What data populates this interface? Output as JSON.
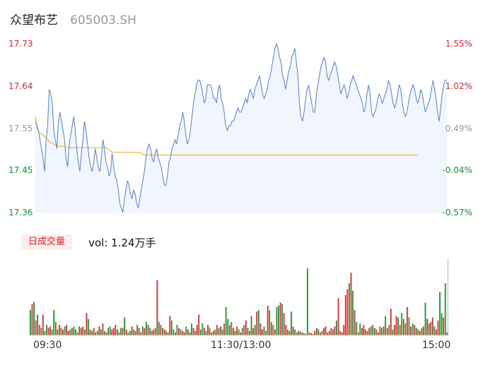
{
  "header": {
    "name": "众望布艺",
    "code": "605003.SH"
  },
  "colors": {
    "up": "#e8262f",
    "down": "#139a2f",
    "price_line": "#4f7fe8",
    "avg_line": "#f4b53f",
    "fill": "#f1f5fd"
  },
  "volume_panel": {
    "tab_label": "日成交量",
    "vol_label": "vol: 1.24万手"
  },
  "chart_data": [
    {
      "type": "line",
      "x_ticks": [
        "09:30",
        "11:30/13:00",
        "15:00"
      ],
      "y_ticks_left": [
        "17.73",
        "17.64",
        "17.55",
        "17.45",
        "17.36"
      ],
      "y_ticks_right": [
        "1.55%",
        "1.02%",
        "0.49%",
        "-0.04%",
        "-0.57%"
      ],
      "ylim": [
        17.36,
        17.73
      ],
      "series": [
        {
          "values": [
            17.56,
            17.55,
            17.54,
            17.52,
            17.5,
            17.48,
            17.45,
            17.52,
            17.55,
            17.63,
            17.62,
            17.6,
            17.54,
            17.52,
            17.5,
            17.56,
            17.58,
            17.56,
            17.54,
            17.52,
            17.48,
            17.46,
            17.51,
            17.53,
            17.55,
            17.57,
            17.54,
            17.5,
            17.47,
            17.45,
            17.49,
            17.52,
            17.56,
            17.54,
            17.51,
            17.48,
            17.46,
            17.45,
            17.47,
            17.5,
            17.48,
            17.46,
            17.45,
            17.48,
            17.52,
            17.5,
            17.47,
            17.46,
            17.44,
            17.45,
            17.49,
            17.46,
            17.44,
            17.43,
            17.41,
            17.38,
            17.37,
            17.36,
            17.39,
            17.41,
            17.43,
            17.42,
            17.4,
            17.39,
            17.41,
            17.4,
            17.38,
            17.37,
            17.39,
            17.41,
            17.43,
            17.45,
            17.48,
            17.5,
            17.51,
            17.5,
            17.48,
            17.47,
            17.49,
            17.5,
            17.48,
            17.47,
            17.46,
            17.44,
            17.42,
            17.42,
            17.44,
            17.47,
            17.48,
            17.5,
            17.51,
            17.52,
            17.51,
            17.53,
            17.55,
            17.56,
            17.58,
            17.56,
            17.53,
            17.51,
            17.52,
            17.54,
            17.57,
            17.6,
            17.62,
            17.64,
            17.65,
            17.65,
            17.64,
            17.62,
            17.6,
            17.61,
            17.64,
            17.64,
            17.64,
            17.63,
            17.61,
            17.61,
            17.6,
            17.63,
            17.64,
            17.61,
            17.6,
            17.58,
            17.55,
            17.54,
            17.55,
            17.55,
            17.56,
            17.56,
            17.57,
            17.58,
            17.59,
            17.58,
            17.58,
            17.59,
            17.6,
            17.61,
            17.6,
            17.62,
            17.63,
            17.62,
            17.61,
            17.63,
            17.64,
            17.65,
            17.66,
            17.64,
            17.62,
            17.61,
            17.62,
            17.63,
            17.65,
            17.66,
            17.68,
            17.7,
            17.72,
            17.73,
            17.72,
            17.7,
            17.69,
            17.66,
            17.65,
            17.63,
            17.65,
            17.67,
            17.68,
            17.7,
            17.71,
            17.72,
            17.69,
            17.66,
            17.6,
            17.57,
            17.56,
            17.58,
            17.61,
            17.63,
            17.64,
            17.62,
            17.6,
            17.58,
            17.58,
            17.62,
            17.64,
            17.66,
            17.68,
            17.69,
            17.7,
            17.69,
            17.66,
            17.65,
            17.66,
            17.67,
            17.68,
            17.69,
            17.68,
            17.66,
            17.64,
            17.62,
            17.63,
            17.64,
            17.63,
            17.61,
            17.62,
            17.64,
            17.65,
            17.66,
            17.65,
            17.64,
            17.63,
            17.62,
            17.61,
            17.6,
            17.58,
            17.59,
            17.62,
            17.64,
            17.62,
            17.58,
            17.57,
            17.58,
            17.59,
            17.61,
            17.62,
            17.61,
            17.6,
            17.61,
            17.62,
            17.63,
            17.65,
            17.64,
            17.62,
            17.6,
            17.59,
            17.6,
            17.62,
            17.64,
            17.63,
            17.6,
            17.58,
            17.57,
            17.58,
            17.6,
            17.62,
            17.63,
            17.64,
            17.63,
            17.61,
            17.6,
            17.61,
            17.63,
            17.62,
            17.6,
            17.58,
            17.59,
            17.6,
            17.61,
            17.63,
            17.65,
            17.63,
            17.61,
            17.58,
            17.56,
            17.59,
            17.62,
            17.64,
            17.65,
            17.65
          ]
        },
        {
          "values": [
            17.57,
            17.545,
            17.538,
            17.535,
            17.532,
            17.53,
            17.527,
            17.525,
            17.52,
            17.516,
            17.514,
            17.512,
            17.51,
            17.508,
            17.507,
            17.506,
            17.505,
            17.505,
            17.505,
            17.504,
            17.503,
            17.502,
            17.502,
            17.502,
            17.502,
            17.502,
            17.502,
            17.502,
            17.502,
            17.502,
            17.502,
            17.502,
            17.502,
            17.502,
            17.502,
            17.502,
            17.502,
            17.502,
            17.502,
            17.502,
            17.502,
            17.502,
            17.502,
            17.502,
            17.502,
            17.502,
            17.502,
            17.5,
            17.497,
            17.495,
            17.493,
            17.492,
            17.492,
            17.492,
            17.492,
            17.492,
            17.492,
            17.492,
            17.492,
            17.492,
            17.492,
            17.492,
            17.492,
            17.492,
            17.492,
            17.492,
            17.492,
            17.492,
            17.492,
            17.49,
            17.488,
            17.486,
            17.486,
            17.486,
            17.486,
            17.486,
            17.486,
            17.486,
            17.486,
            17.486,
            17.486,
            17.486,
            17.486,
            17.486,
            17.486,
            17.486,
            17.486,
            17.486,
            17.486,
            17.486,
            17.486,
            17.486,
            17.486,
            17.486,
            17.486,
            17.486,
            17.486,
            17.486,
            17.486,
            17.486,
            17.486,
            17.486,
            17.486,
            17.486,
            17.486,
            17.486,
            17.486,
            17.486,
            17.486,
            17.486,
            17.486,
            17.486,
            17.486,
            17.486,
            17.486,
            17.486,
            17.486,
            17.486,
            17.486,
            17.486,
            17.486,
            17.486,
            17.486,
            17.486,
            17.486,
            17.486,
            17.486,
            17.486,
            17.486,
            17.486,
            17.486,
            17.486,
            17.486,
            17.486,
            17.486,
            17.486,
            17.486,
            17.486,
            17.486,
            17.486,
            17.486,
            17.486,
            17.486,
            17.486,
            17.486,
            17.486,
            17.486,
            17.486,
            17.486,
            17.486,
            17.486,
            17.486,
            17.486,
            17.486,
            17.486,
            17.486,
            17.486,
            17.486,
            17.486,
            17.486,
            17.486,
            17.486,
            17.486,
            17.486,
            17.486,
            17.486,
            17.486,
            17.486,
            17.486,
            17.486,
            17.486,
            17.486,
            17.486,
            17.486,
            17.486,
            17.486,
            17.486,
            17.486,
            17.486,
            17.486,
            17.486,
            17.486,
            17.486,
            17.486,
            17.486,
            17.486,
            17.486,
            17.486,
            17.486,
            17.486,
            17.486,
            17.486,
            17.486,
            17.486,
            17.486,
            17.486,
            17.486,
            17.486,
            17.486,
            17.486,
            17.486,
            17.486,
            17.486,
            17.486,
            17.486,
            17.486,
            17.486,
            17.486,
            17.486,
            17.486,
            17.486,
            17.486,
            17.486,
            17.486,
            17.486,
            17.486,
            17.486,
            17.486,
            17.486,
            17.486,
            17.486,
            17.486,
            17.486,
            17.486,
            17.486,
            17.486,
            17.486,
            17.486,
            17.486,
            17.486,
            17.486,
            17.486,
            17.486,
            17.486,
            17.486,
            17.486,
            17.486,
            17.486,
            17.486,
            17.486,
            17.486,
            17.486,
            17.486,
            17.486,
            17.486,
            17.486,
            17.486,
            17.486,
            17.486,
            17.486
          ]
        }
      ]
    },
    {
      "type": "bar",
      "x_ticks": [
        "09:30",
        "11:30/13:00",
        "15:00"
      ],
      "values": [
        34,
        42,
        45,
        20,
        28,
        14,
        10,
        28,
        6,
        14,
        10,
        12,
        8,
        34,
        18,
        8,
        14,
        10,
        8,
        12,
        14,
        6,
        8,
        10,
        12,
        8,
        4,
        12,
        10,
        12,
        8,
        30,
        22,
        8,
        6,
        10,
        4,
        6,
        12,
        8,
        16,
        6,
        4,
        10,
        12,
        8,
        10,
        14,
        8,
        4,
        10,
        10,
        24,
        8,
        4,
        6,
        12,
        8,
        6,
        14,
        10,
        4,
        12,
        10,
        18,
        14,
        10,
        6,
        8,
        10,
        74,
        18,
        14,
        10,
        8,
        6,
        4,
        26,
        20,
        8,
        4,
        14,
        10,
        8,
        6,
        4,
        12,
        8,
        4,
        16,
        10,
        6,
        14,
        28,
        8,
        16,
        10,
        6,
        14,
        10,
        4,
        6,
        8,
        14,
        10,
        12,
        8,
        16,
        38,
        22,
        14,
        18,
        10,
        6,
        12,
        8,
        4,
        10,
        14,
        20,
        10,
        6,
        26,
        10,
        14,
        32,
        34,
        16,
        8,
        12,
        6,
        40,
        34,
        18,
        14,
        8,
        38,
        40,
        44,
        42,
        30,
        14,
        8,
        6,
        32,
        12,
        8,
        4,
        6,
        5,
        4,
        3,
        2,
        90,
        4,
        3,
        2,
        6,
        10,
        8,
        4,
        6,
        10,
        12,
        4,
        6,
        10,
        8,
        12,
        20,
        50,
        6,
        4,
        14,
        54,
        62,
        70,
        84,
        60,
        34,
        18,
        4,
        16,
        10,
        14,
        8,
        6,
        10,
        12,
        14,
        10,
        8,
        4,
        12,
        10,
        12,
        26,
        10,
        14,
        36,
        8,
        14,
        26,
        24,
        14,
        30,
        22,
        16,
        38,
        24,
        12,
        16,
        14,
        10,
        8,
        6,
        10,
        12,
        44,
        22,
        16,
        18,
        24,
        12,
        8,
        20,
        58,
        30,
        24,
        70,
        4
      ],
      "colors_seq": [
        "down",
        "up",
        "down",
        "up",
        "down",
        "up",
        "down",
        "up",
        "down",
        "down",
        "up",
        "up",
        "down",
        "down",
        "up",
        "down",
        "up",
        "down",
        "up",
        "down",
        "up",
        "up",
        "down",
        "up",
        "down",
        "down",
        "up",
        "down",
        "up",
        "up",
        "down",
        "up",
        "down",
        "up",
        "down",
        "up",
        "up",
        "down",
        "up",
        "down",
        "up",
        "down",
        "up",
        "down",
        "down",
        "up",
        "up",
        "up",
        "down",
        "up",
        "down",
        "up",
        "down",
        "up",
        "down",
        "down",
        "up",
        "down",
        "up",
        "down",
        "up",
        "up",
        "down",
        "up",
        "down",
        "up",
        "down",
        "up",
        "up",
        "down",
        "up",
        "down",
        "up",
        "down",
        "up",
        "down",
        "up",
        "up",
        "down",
        "down",
        "up",
        "down",
        "up",
        "down",
        "up",
        "up",
        "down",
        "up",
        "down",
        "down",
        "up",
        "down",
        "up",
        "up",
        "down",
        "down",
        "up",
        "down",
        "up",
        "down",
        "up",
        "up",
        "down",
        "up",
        "down",
        "up",
        "down",
        "up",
        "down",
        "down",
        "up",
        "down",
        "up",
        "down",
        "up",
        "down",
        "up",
        "down",
        "up",
        "up",
        "down",
        "up",
        "down",
        "up",
        "down",
        "up",
        "down",
        "up",
        "up",
        "down",
        "down",
        "up",
        "down",
        "up",
        "down",
        "up",
        "down",
        "down",
        "up",
        "down",
        "up",
        "up",
        "down",
        "up",
        "down",
        "up",
        "down",
        "down",
        "up",
        "down",
        "up",
        "down",
        "up",
        "down",
        "up",
        "up",
        "down",
        "up",
        "up",
        "down",
        "up",
        "down",
        "up",
        "up",
        "down",
        "up",
        "down",
        "up",
        "up",
        "down",
        "up",
        "down",
        "up",
        "up",
        "up",
        "up",
        "down",
        "up",
        "down",
        "up",
        "down",
        "up",
        "down",
        "up",
        "up",
        "down",
        "up",
        "down",
        "up",
        "down",
        "up",
        "down",
        "up",
        "up",
        "down",
        "up",
        "down",
        "up",
        "down",
        "up",
        "down",
        "up",
        "up",
        "down",
        "up",
        "down",
        "up",
        "down",
        "up",
        "down",
        "up",
        "down",
        "up",
        "down",
        "up",
        "up",
        "down",
        "up",
        "down",
        "up",
        "down",
        "up",
        "up",
        "down",
        "up",
        "up",
        "down",
        "down",
        "up",
        "down",
        "up",
        "up",
        "down",
        "up",
        "up",
        "down",
        "up",
        "up",
        "down"
      ]
    }
  ]
}
